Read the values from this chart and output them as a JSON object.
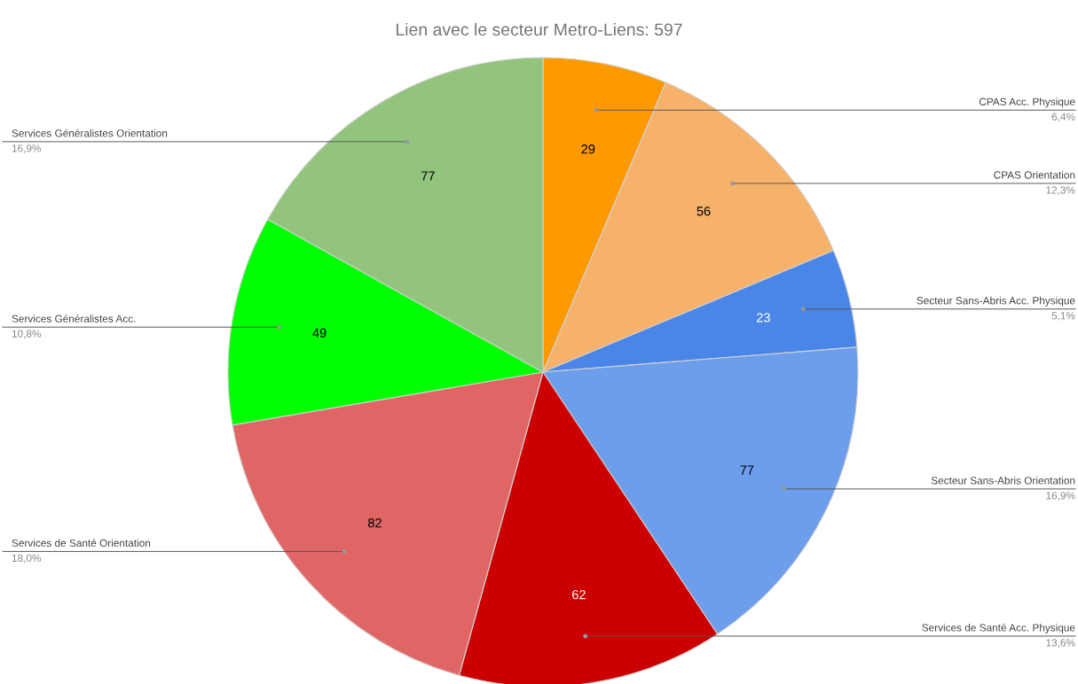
{
  "chart_data": {
    "type": "pie",
    "title": "Lien avec le secteur Metro-Liens: 597",
    "categories": [
      "CPAS Acc. Physique\n6,4%",
      "CPAS Orientation\n12,3%",
      "Secteur Sans-Abris Acc. Physique\n5,1%",
      "Secteur Sans-Abris Orientation\n16,9%",
      "Services de Santé Acc. Physique\n13,6%",
      "Services de Santé Orientation\n18,0%",
      "Services Généralistes Acc.\n10,8%",
      "Services Généralistes Orientation\n16,9%"
    ],
    "values": [
      29,
      56,
      23,
      77,
      62,
      82,
      49,
      77
    ],
    "colors": [
      "#ff9900",
      "#f6b26b",
      "#4a86e8",
      "#6d9eeb",
      "#cc0000",
      "#e06666",
      "#00ff00",
      "#93c47d"
    ],
    "data_labels": true
  }
}
